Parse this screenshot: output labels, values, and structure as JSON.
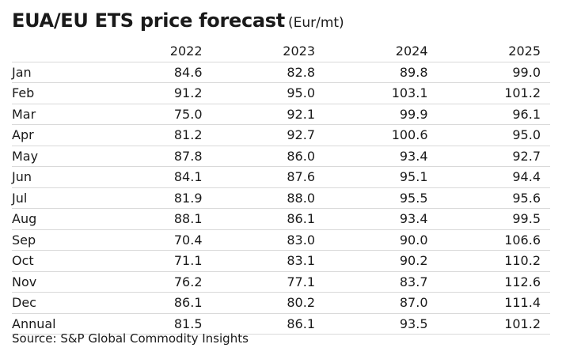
{
  "title": "EUA/EU ETS price forecast",
  "unit": "(Eur/mt)",
  "source": "Source: S&P Global Commodity Insights",
  "chart_data": {
    "type": "table",
    "title": "EUA/EU ETS price forecast",
    "unit": "(Eur/mt)",
    "columns": [
      "2022",
      "2023",
      "2024",
      "2025"
    ],
    "rows": [
      {
        "label": "Jan",
        "values": [
          "84.6",
          "82.8",
          "89.8",
          "99.0"
        ]
      },
      {
        "label": "Feb",
        "values": [
          "91.2",
          "95.0",
          "103.1",
          "101.2"
        ]
      },
      {
        "label": "Mar",
        "values": [
          "75.0",
          "92.1",
          "99.9",
          "96.1"
        ]
      },
      {
        "label": "Apr",
        "values": [
          "81.2",
          "92.7",
          "100.6",
          "95.0"
        ]
      },
      {
        "label": "May",
        "values": [
          "87.8",
          "86.0",
          "93.4",
          "92.7"
        ]
      },
      {
        "label": "Jun",
        "values": [
          "84.1",
          "87.6",
          "95.1",
          "94.4"
        ]
      },
      {
        "label": "Jul",
        "values": [
          "81.9",
          "88.0",
          "95.5",
          "95.6"
        ]
      },
      {
        "label": "Aug",
        "values": [
          "88.1",
          "86.1",
          "93.4",
          "99.5"
        ]
      },
      {
        "label": "Sep",
        "values": [
          "70.4",
          "83.0",
          "90.0",
          "106.6"
        ]
      },
      {
        "label": "Oct",
        "values": [
          "71.1",
          "83.1",
          "90.2",
          "110.2"
        ]
      },
      {
        "label": "Nov",
        "values": [
          "76.2",
          "77.1",
          "83.7",
          "112.6"
        ]
      },
      {
        "label": "Dec",
        "values": [
          "86.1",
          "80.2",
          "87.0",
          "111.4"
        ]
      },
      {
        "label": "Annual",
        "values": [
          "81.5",
          "86.1",
          "93.5",
          "101.2"
        ]
      }
    ]
  }
}
